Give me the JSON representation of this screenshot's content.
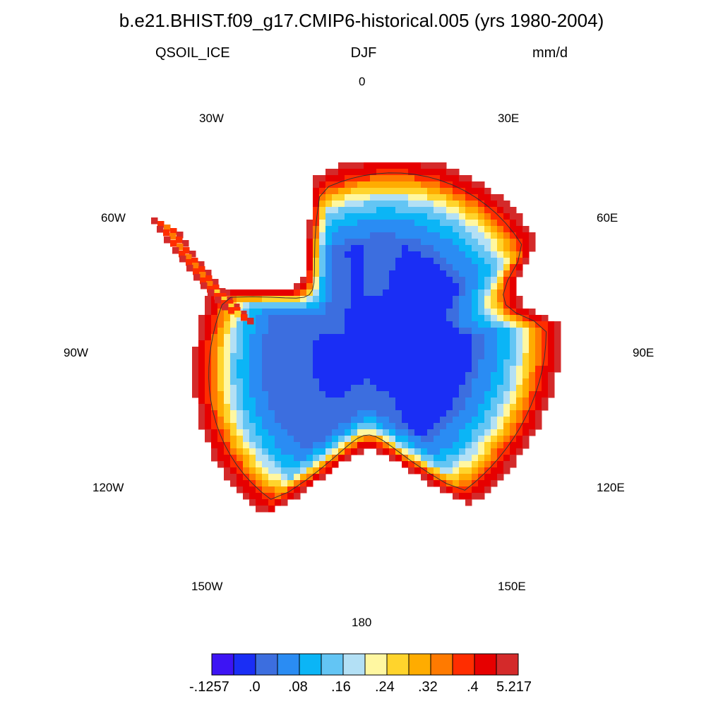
{
  "title": "b.e21.BHIST.f09_g17.CMIP6-historical.005 (yrs 1980-2004)",
  "subtitle": {
    "left": "QSOIL_ICE",
    "center": "DJF",
    "right": "mm/d"
  },
  "longitude_labels": {
    "lon_0": "0",
    "lon_30e": "30E",
    "lon_60e": "60E",
    "lon_90e": "90E",
    "lon_120e": "120E",
    "lon_150e": "150E",
    "lon_180": "180",
    "lon_150w": "150W",
    "lon_120w": "120W",
    "lon_90w": "90W",
    "lon_60w": "60W",
    "lon_30w": "30W"
  },
  "colorbar": {
    "colors": [
      "#3d14f4",
      "#1a2ef5",
      "#3c6edf",
      "#2a8cf3",
      "#0bb5f6",
      "#63c5f4",
      "#b3e0f5",
      "#fff7a1",
      "#ffd42c",
      "#ffac00",
      "#ff7a00",
      "#ff2d00",
      "#e60000",
      "#d42a2a"
    ],
    "labels": {
      "l0": "-.1257",
      "l1": ".0",
      "l2": ".08",
      "l3": ".16",
      "l4": ".24",
      "l5": ".32",
      "l6": ".4",
      "l7": "5.217"
    }
  }
}
